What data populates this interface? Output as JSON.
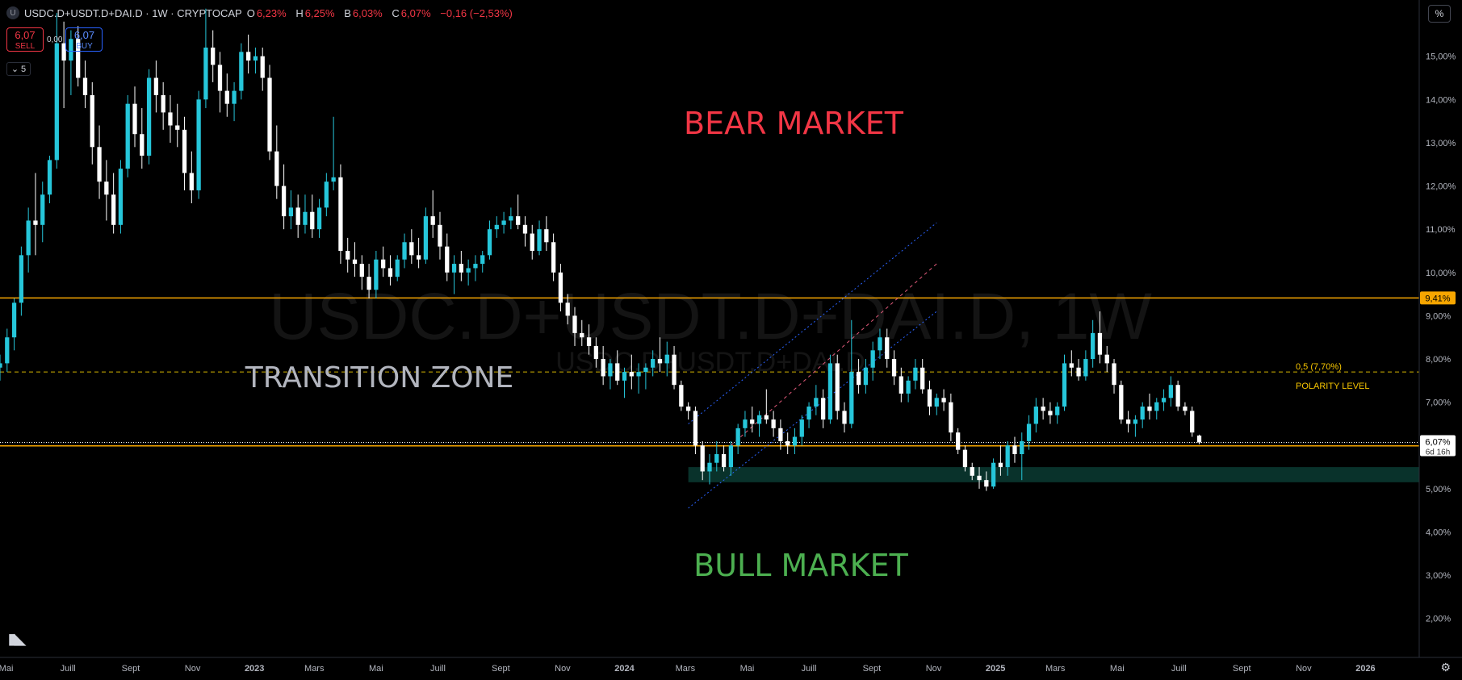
{
  "header": {
    "symbol_icon": "U",
    "title": "USDC.D+USDT.D+DAI.D · 1W · CRYPTOCAP",
    "ohlc": [
      {
        "k": "O",
        "v": "6,23%"
      },
      {
        "k": "H",
        "v": "6,25%"
      },
      {
        "k": "B",
        "v": "6,03%"
      },
      {
        "k": "C",
        "v": "6,07%"
      }
    ],
    "change": "−0,16 (−2,53%)"
  },
  "trade": {
    "sell_price": "6,07",
    "sell_label": "SELL",
    "buy_price": "6,07",
    "buy_label": "BUY",
    "spread": "0,00"
  },
  "indicators_count": "5",
  "scale_button": "%",
  "settings_icon": "gear-icon",
  "colors": {
    "up": "#26c6da",
    "down": "#ffffff",
    "level": "#f7a600",
    "bear": "#f23645",
    "bull": "#4caf50",
    "transition": "#b2b5be",
    "channel": "#2962ff",
    "zone": "#0b3b33"
  },
  "chart_data": {
    "type": "candlestick",
    "symbol": "USDC.D+USDT.D+DAI.D",
    "interval": "1W",
    "y_unit": "%",
    "ylim": [
      1.1,
      16.3
    ],
    "xlim": [
      "2022-04-25",
      "2026-02-23"
    ],
    "y_ticks": [
      {
        "v": 15,
        "label": "15,00%"
      },
      {
        "v": 14,
        "label": "14,00%"
      },
      {
        "v": 13,
        "label": "13,00%"
      },
      {
        "v": 12,
        "label": "12,00%"
      },
      {
        "v": 11,
        "label": "11,00%"
      },
      {
        "v": 10,
        "label": "10,00%"
      },
      {
        "v": 9,
        "label": "9,00%"
      },
      {
        "v": 8,
        "label": "8,00%"
      },
      {
        "v": 7,
        "label": "7,00%"
      },
      {
        "v": 5,
        "label": "5,00%"
      },
      {
        "v": 4,
        "label": "4,00%"
      },
      {
        "v": 3,
        "label": "3,00%"
      },
      {
        "v": 2,
        "label": "2,00%"
      }
    ],
    "x_ticks": [
      {
        "d": "2022-05-01",
        "label": "Mai"
      },
      {
        "d": "2022-07-01",
        "label": "Juill"
      },
      {
        "d": "2022-09-01",
        "label": "Sept"
      },
      {
        "d": "2022-11-01",
        "label": "Nov"
      },
      {
        "d": "2023-01-01",
        "label": "2023"
      },
      {
        "d": "2023-03-01",
        "label": "Mars"
      },
      {
        "d": "2023-05-01",
        "label": "Mai"
      },
      {
        "d": "2023-07-01",
        "label": "Juill"
      },
      {
        "d": "2023-09-01",
        "label": "Sept"
      },
      {
        "d": "2023-11-01",
        "label": "Nov"
      },
      {
        "d": "2024-01-01",
        "label": "2024"
      },
      {
        "d": "2024-03-01",
        "label": "Mars"
      },
      {
        "d": "2024-05-01",
        "label": "Mai"
      },
      {
        "d": "2024-07-01",
        "label": "Juill"
      },
      {
        "d": "2024-09-01",
        "label": "Sept"
      },
      {
        "d": "2024-11-01",
        "label": "Nov"
      },
      {
        "d": "2025-01-01",
        "label": "2025"
      },
      {
        "d": "2025-03-01",
        "label": "Mars"
      },
      {
        "d": "2025-05-01",
        "label": "Mai"
      },
      {
        "d": "2025-07-01",
        "label": "Juill"
      },
      {
        "d": "2025-09-01",
        "label": "Sept"
      },
      {
        "d": "2025-11-01",
        "label": "Nov"
      },
      {
        "d": "2026-01-01",
        "label": "2026"
      }
    ],
    "watermark": "USDC.D+USDT.D+DAI.D, 1W",
    "watermark_sub": "USDC.D+USDT.D+DAI.D",
    "horizontal_levels": [
      {
        "v": 9.41,
        "label": "9,41%",
        "style": "solid"
      },
      {
        "v": 5.99,
        "label": "5,99%",
        "style": "solid"
      },
      {
        "v": 7.7,
        "style": "dashed",
        "text1": "0,5 (7,70%)",
        "text2": "POLARITY LEVEL"
      }
    ],
    "last_price": {
      "v": 6.07,
      "label": "6,07%",
      "countdown": "6d 16h"
    },
    "support_zone": {
      "from": "2024-03-04",
      "to": "2026-02-23",
      "low": 5.15,
      "high": 5.5
    },
    "channel": {
      "upper": [
        [
          "2024-03-04",
          6.5
        ],
        [
          "2024-11-04",
          11.15
        ]
      ],
      "mid": [
        [
          "2024-04-15",
          6.0
        ],
        [
          "2024-11-04",
          10.2
        ]
      ],
      "lower": [
        [
          "2024-03-04",
          4.55
        ],
        [
          "2024-11-04",
          9.1
        ]
      ]
    },
    "annotations": [
      {
        "text": "BEAR MARKET",
        "color": "#f23645"
      },
      {
        "text": "TRANSITION ZONE",
        "color": "#b2b5be"
      },
      {
        "text": "BULL MARKET",
        "color": "#4caf50"
      }
    ],
    "start": "2022-04-25",
    "ohlc": [
      [
        7.8,
        8.1,
        7.5,
        7.9
      ],
      [
        7.9,
        8.7,
        7.7,
        8.5
      ],
      [
        8.5,
        9.4,
        8.2,
        9.3
      ],
      [
        9.3,
        10.6,
        9.0,
        10.4
      ],
      [
        10.4,
        11.5,
        10.0,
        11.2
      ],
      [
        11.2,
        12.3,
        10.4,
        11.1
      ],
      [
        11.1,
        12.1,
        10.7,
        11.8
      ],
      [
        11.8,
        12.7,
        11.6,
        12.6
      ],
      [
        12.6,
        16.0,
        12.4,
        15.3
      ],
      [
        15.3,
        15.8,
        13.8,
        14.9
      ],
      [
        14.9,
        15.6,
        14.1,
        15.4
      ],
      [
        15.4,
        15.7,
        14.3,
        14.5
      ],
      [
        14.5,
        14.9,
        13.8,
        14.1
      ],
      [
        14.1,
        14.4,
        12.5,
        12.9
      ],
      [
        12.9,
        13.4,
        11.7,
        12.1
      ],
      [
        12.1,
        12.6,
        11.2,
        11.8
      ],
      [
        11.8,
        12.3,
        10.9,
        11.1
      ],
      [
        11.1,
        12.6,
        10.9,
        12.4
      ],
      [
        12.4,
        14.1,
        12.2,
        13.9
      ],
      [
        13.9,
        14.3,
        12.9,
        13.2
      ],
      [
        13.2,
        13.8,
        12.4,
        12.7
      ],
      [
        12.7,
        14.7,
        12.5,
        14.5
      ],
      [
        14.5,
        14.9,
        13.7,
        14.1
      ],
      [
        14.1,
        14.4,
        13.3,
        13.7
      ],
      [
        13.7,
        14.1,
        13.0,
        13.4
      ],
      [
        13.4,
        13.9,
        12.9,
        13.3
      ],
      [
        13.3,
        13.6,
        11.9,
        12.3
      ],
      [
        12.3,
        12.8,
        11.6,
        11.9
      ],
      [
        11.9,
        14.2,
        11.7,
        14.0
      ],
      [
        14.0,
        16.1,
        13.8,
        15.2
      ],
      [
        15.2,
        15.6,
        14.4,
        14.8
      ],
      [
        14.8,
        15.1,
        13.7,
        14.2
      ],
      [
        14.2,
        14.6,
        13.6,
        13.9
      ],
      [
        13.9,
        14.4,
        13.5,
        14.2
      ],
      [
        14.2,
        15.3,
        14.0,
        15.1
      ],
      [
        15.1,
        15.5,
        14.6,
        14.9
      ],
      [
        14.9,
        15.2,
        14.6,
        15.0
      ],
      [
        15.0,
        15.2,
        14.2,
        14.5
      ],
      [
        14.5,
        14.8,
        12.6,
        12.8
      ],
      [
        12.8,
        13.4,
        11.7,
        12.0
      ],
      [
        12.0,
        12.5,
        11.0,
        11.3
      ],
      [
        11.3,
        11.9,
        11.0,
        11.5
      ],
      [
        11.5,
        11.8,
        10.8,
        11.1
      ],
      [
        11.1,
        11.8,
        10.9,
        11.4
      ],
      [
        11.4,
        11.8,
        10.8,
        11.0
      ],
      [
        11.0,
        11.7,
        10.8,
        11.5
      ],
      [
        11.5,
        12.3,
        11.3,
        12.1
      ],
      [
        12.1,
        13.6,
        11.9,
        12.2
      ],
      [
        12.2,
        12.5,
        10.2,
        10.5
      ],
      [
        10.5,
        10.8,
        10.0,
        10.3
      ],
      [
        10.3,
        10.7,
        9.9,
        10.2
      ],
      [
        10.2,
        10.4,
        9.6,
        9.9
      ],
      [
        9.9,
        10.2,
        9.4,
        9.6
      ],
      [
        9.6,
        10.5,
        9.4,
        10.3
      ],
      [
        10.3,
        10.6,
        9.9,
        10.1
      ],
      [
        10.1,
        10.4,
        9.7,
        9.9
      ],
      [
        9.9,
        10.4,
        9.8,
        10.3
      ],
      [
        10.3,
        10.9,
        10.1,
        10.7
      ],
      [
        10.7,
        11.0,
        10.2,
        10.4
      ],
      [
        10.4,
        10.8,
        10.1,
        10.3
      ],
      [
        10.3,
        11.5,
        10.2,
        11.3
      ],
      [
        11.3,
        11.9,
        10.8,
        11.1
      ],
      [
        11.1,
        11.4,
        10.3,
        10.6
      ],
      [
        10.6,
        10.9,
        9.8,
        10.0
      ],
      [
        10.0,
        10.4,
        9.5,
        10.2
      ],
      [
        10.2,
        10.5,
        9.8,
        10.0
      ],
      [
        10.0,
        10.3,
        9.7,
        10.1
      ],
      [
        10.1,
        10.4,
        9.8,
        10.2
      ],
      [
        10.2,
        10.5,
        10.0,
        10.4
      ],
      [
        10.4,
        11.2,
        10.3,
        11.0
      ],
      [
        11.0,
        11.3,
        10.8,
        11.1
      ],
      [
        11.1,
        11.4,
        10.9,
        11.2
      ],
      [
        11.2,
        11.5,
        11.0,
        11.3
      ],
      [
        11.3,
        11.8,
        11.0,
        11.1
      ],
      [
        11.1,
        11.3,
        10.6,
        10.9
      ],
      [
        10.9,
        11.1,
        10.3,
        10.5
      ],
      [
        10.5,
        11.2,
        10.4,
        11.0
      ],
      [
        11.0,
        11.3,
        10.5,
        10.7
      ],
      [
        10.7,
        10.9,
        9.8,
        10.0
      ],
      [
        10.0,
        10.2,
        9.1,
        9.3
      ],
      [
        9.3,
        9.5,
        8.8,
        9.0
      ],
      [
        9.0,
        9.2,
        8.3,
        8.6
      ],
      [
        8.6,
        8.9,
        8.3,
        8.5
      ],
      [
        8.5,
        8.8,
        8.1,
        8.3
      ],
      [
        8.3,
        8.5,
        7.8,
        8.0
      ],
      [
        8.0,
        8.3,
        7.4,
        7.6
      ],
      [
        7.6,
        8.0,
        7.3,
        7.9
      ],
      [
        7.9,
        8.2,
        7.4,
        7.5
      ],
      [
        7.5,
        7.8,
        7.1,
        7.7
      ],
      [
        7.7,
        8.1,
        7.3,
        7.6
      ],
      [
        7.6,
        7.9,
        7.2,
        7.7
      ],
      [
        7.7,
        7.9,
        7.3,
        7.8
      ],
      [
        7.8,
        8.2,
        7.6,
        8.0
      ],
      [
        8.0,
        8.5,
        7.7,
        7.9
      ],
      [
        7.9,
        8.4,
        7.6,
        8.1
      ],
      [
        8.1,
        8.3,
        7.3,
        7.4
      ],
      [
        7.4,
        7.5,
        6.8,
        6.9
      ],
      [
        6.9,
        7.0,
        6.6,
        6.8
      ],
      [
        6.8,
        6.9,
        5.8,
        6.0
      ],
      [
        6.0,
        6.1,
        5.2,
        5.4
      ],
      [
        5.4,
        5.8,
        5.1,
        5.6
      ],
      [
        5.6,
        6.1,
        5.4,
        5.8
      ],
      [
        5.8,
        6.0,
        5.4,
        5.5
      ],
      [
        5.5,
        6.1,
        5.3,
        6.0
      ],
      [
        6.0,
        6.5,
        5.8,
        6.4
      ],
      [
        6.4,
        6.8,
        6.2,
        6.6
      ],
      [
        6.6,
        6.9,
        6.3,
        6.5
      ],
      [
        6.5,
        6.8,
        6.2,
        6.7
      ],
      [
        6.7,
        7.3,
        6.5,
        6.6
      ],
      [
        6.6,
        6.8,
        6.2,
        6.4
      ],
      [
        6.4,
        6.6,
        5.9,
        6.1
      ],
      [
        6.1,
        6.3,
        5.8,
        6.0
      ],
      [
        6.0,
        6.4,
        5.8,
        6.2
      ],
      [
        6.2,
        6.7,
        6.0,
        6.6
      ],
      [
        6.6,
        7.0,
        6.4,
        6.9
      ],
      [
        6.9,
        7.4,
        6.7,
        7.1
      ],
      [
        7.1,
        7.3,
        6.4,
        6.6
      ],
      [
        6.6,
        8.1,
        6.5,
        7.9
      ],
      [
        7.9,
        8.1,
        6.6,
        6.8
      ],
      [
        6.8,
        7.0,
        6.3,
        6.5
      ],
      [
        6.5,
        8.9,
        6.4,
        7.7
      ],
      [
        7.7,
        8.0,
        7.2,
        7.4
      ],
      [
        7.4,
        8.0,
        7.2,
        7.8
      ],
      [
        7.8,
        8.4,
        7.5,
        8.2
      ],
      [
        8.2,
        8.7,
        8.0,
        8.5
      ],
      [
        8.5,
        8.7,
        7.8,
        8.0
      ],
      [
        8.0,
        8.2,
        7.4,
        7.6
      ],
      [
        7.6,
        7.8,
        7.0,
        7.2
      ],
      [
        7.2,
        7.6,
        7.0,
        7.5
      ],
      [
        7.5,
        8.0,
        7.3,
        7.8
      ],
      [
        7.8,
        8.0,
        7.2,
        7.3
      ],
      [
        7.3,
        7.5,
        6.7,
        6.9
      ],
      [
        6.9,
        7.2,
        6.7,
        7.1
      ],
      [
        7.1,
        7.3,
        6.8,
        7.0
      ],
      [
        7.0,
        7.2,
        6.1,
        6.3
      ],
      [
        6.3,
        6.4,
        5.8,
        5.9
      ],
      [
        5.9,
        6.0,
        5.4,
        5.5
      ],
      [
        5.5,
        5.6,
        5.2,
        5.3
      ],
      [
        5.3,
        5.5,
        5.0,
        5.2
      ],
      [
        5.2,
        5.4,
        4.95,
        5.05
      ],
      [
        5.05,
        5.7,
        5.0,
        5.6
      ],
      [
        5.6,
        6.0,
        5.3,
        5.5
      ],
      [
        5.5,
        6.1,
        5.3,
        6.0
      ],
      [
        6.0,
        6.2,
        5.6,
        5.8
      ],
      [
        5.8,
        6.3,
        5.2,
        6.1
      ],
      [
        6.1,
        6.7,
        5.9,
        6.5
      ],
      [
        6.5,
        7.1,
        6.3,
        6.9
      ],
      [
        6.9,
        7.1,
        6.6,
        6.8
      ],
      [
        6.8,
        7.0,
        6.5,
        6.7
      ],
      [
        6.7,
        7.0,
        6.5,
        6.9
      ],
      [
        6.9,
        8.1,
        6.8,
        7.9
      ],
      [
        7.9,
        8.2,
        7.6,
        7.8
      ],
      [
        7.8,
        8.0,
        7.5,
        7.6
      ],
      [
        7.6,
        8.2,
        7.5,
        8.0
      ],
      [
        8.0,
        8.9,
        7.8,
        8.6
      ],
      [
        8.6,
        9.1,
        7.9,
        8.1
      ],
      [
        8.1,
        8.3,
        7.7,
        7.9
      ],
      [
        7.9,
        8.0,
        7.2,
        7.4
      ],
      [
        7.4,
        7.5,
        6.5,
        6.6
      ],
      [
        6.6,
        6.8,
        6.3,
        6.5
      ],
      [
        6.5,
        6.7,
        6.2,
        6.6
      ],
      [
        6.6,
        7.0,
        6.4,
        6.9
      ],
      [
        6.9,
        7.2,
        6.6,
        6.8
      ],
      [
        6.8,
        7.1,
        6.6,
        7.0
      ],
      [
        7.0,
        7.3,
        6.8,
        7.1
      ],
      [
        7.1,
        7.6,
        6.9,
        7.4
      ],
      [
        7.4,
        7.5,
        6.8,
        6.9
      ],
      [
        6.9,
        7.0,
        6.7,
        6.8
      ],
      [
        6.8,
        6.9,
        6.2,
        6.3
      ],
      [
        6.23,
        6.25,
        6.03,
        6.07
      ]
    ]
  }
}
